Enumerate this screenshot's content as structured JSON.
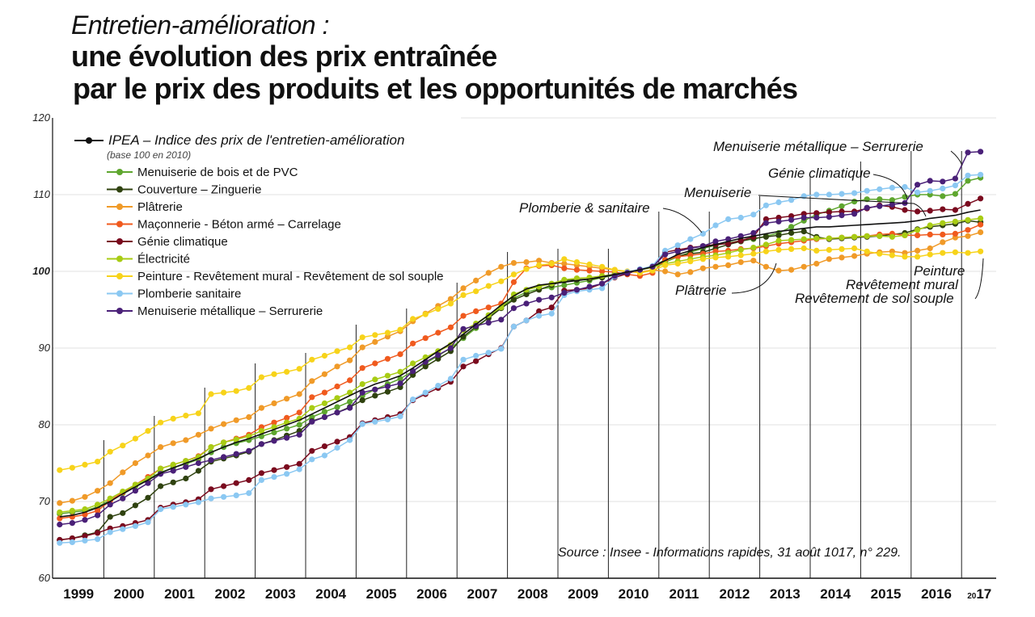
{
  "title": {
    "subtitle": "Entretien-amélioration :",
    "line1": "une évolution des prix entraînée",
    "line2": "par le prix des produits et les opportunités de marchés"
  },
  "legend_title": "IPEA – Indice des prix de l'entretien-amélioration",
  "legend_subtitle": "(base 100 en 2010)",
  "source": "Source : Insee - Informations rapides, 31 août 1017, n° 229.",
  "annotations": {
    "menuiserie_metallique": "Menuiserie métallique – Serrurerie",
    "genie_climatique": "Génie climatique",
    "menuiserie": "Menuiserie",
    "plomberie": "Plomberie & sanitaire",
    "platrerie": "Plâtrerie",
    "peinture": "Peinture",
    "revetement_mural": "Revêtement mural",
    "revetement_sol": "Revêtement de sol souple"
  },
  "chart_data": {
    "type": "line",
    "title": "Entretien-amélioration : une évolution des prix entraînée par le prix des produits et les opportunités de marchés",
    "ylim": [
      60,
      120
    ],
    "yticks": [
      60,
      70,
      80,
      90,
      100,
      110,
      120
    ],
    "x_labels": [
      "1999",
      "2000",
      "2001",
      "2002",
      "2003",
      "2004",
      "2005",
      "2006",
      "2007",
      "2008",
      "2009",
      "2010",
      "2011",
      "2012",
      "2013",
      "2014",
      "2015",
      "2016",
      "2017"
    ],
    "x_label_last_prefix": "20",
    "x_label_last_suffix": "17",
    "x_label_last_year": "2017",
    "x": [
      "1999Q1",
      "1999Q2",
      "1999Q3",
      "1999Q4",
      "2000Q1",
      "2000Q2",
      "2000Q3",
      "2000Q4",
      "2001Q1",
      "2001Q2",
      "2001Q3",
      "2001Q4",
      "2002Q1",
      "2002Q2",
      "2002Q3",
      "2002Q4",
      "2003Q1",
      "2003Q2",
      "2003Q3",
      "2003Q4",
      "2004Q1",
      "2004Q2",
      "2004Q3",
      "2004Q4",
      "2005Q1",
      "2005Q2",
      "2005Q3",
      "2005Q4",
      "2006Q1",
      "2006Q2",
      "2006Q3",
      "2006Q4",
      "2007Q1",
      "2007Q2",
      "2007Q3",
      "2007Q4",
      "2008Q1",
      "2008Q2",
      "2008Q3",
      "2008Q4",
      "2009Q1",
      "2009Q2",
      "2009Q3",
      "2009Q4",
      "2010Q1",
      "2010Q2",
      "2010Q3",
      "2010Q4",
      "2011Q1",
      "2011Q2",
      "2011Q3",
      "2011Q4",
      "2012Q1",
      "2012Q2",
      "2012Q3",
      "2012Q4",
      "2013Q1",
      "2013Q2",
      "2013Q3",
      "2013Q4",
      "2014Q1",
      "2014Q2",
      "2014Q3",
      "2014Q4",
      "2015Q1",
      "2015Q2",
      "2015Q3",
      "2015Q4",
      "2016Q1",
      "2016Q2",
      "2016Q3",
      "2016Q4",
      "2017Q1",
      "2017Q2"
    ],
    "series": [
      {
        "name": "IPEA – Indice des prix de l'entretien-amélioration",
        "color": "#111111",
        "marker_every": 999,
        "values": [
          68.0,
          68.2,
          68.6,
          69.2,
          70.0,
          71.0,
          71.9,
          72.8,
          73.7,
          74.4,
          75.0,
          75.6,
          76.4,
          77.1,
          77.7,
          78.2,
          78.8,
          79.4,
          80.0,
          80.6,
          81.4,
          82.2,
          83.0,
          83.8,
          84.6,
          85.3,
          85.8,
          86.4,
          87.4,
          88.5,
          89.6,
          90.6,
          91.8,
          93.1,
          94.3,
          95.6,
          96.8,
          97.7,
          98.2,
          98.4,
          98.6,
          98.8,
          99.0,
          99.3,
          99.6,
          99.9,
          100.2,
          100.6,
          101.4,
          102.2,
          102.7,
          103.1,
          103.5,
          103.9,
          104.3,
          104.6,
          104.9,
          105.2,
          105.4,
          105.6,
          105.8,
          105.8,
          105.9,
          106.0,
          106.1,
          106.2,
          106.3,
          106.4,
          106.6,
          106.9,
          107.1,
          107.3,
          107.7,
          108.0
        ]
      },
      {
        "name": "Menuiserie de bois et de PVC",
        "color": "#5ea62e",
        "values": [
          68.4,
          68.6,
          68.8,
          69.3,
          70.2,
          71.1,
          72.0,
          72.9,
          73.8,
          74.4,
          74.9,
          75.5,
          76.4,
          77.1,
          77.6,
          78.0,
          78.5,
          79.0,
          79.5,
          80.0,
          81.0,
          81.7,
          82.3,
          83.0,
          83.8,
          84.6,
          85.3,
          86.0,
          87.0,
          88.0,
          89.0,
          90.0,
          91.3,
          92.6,
          94.0,
          95.3,
          96.5,
          97.3,
          97.7,
          97.9,
          98.2,
          98.5,
          98.8,
          99.2,
          99.5,
          99.8,
          100.2,
          100.6,
          101.2,
          101.9,
          102.5,
          103.0,
          103.4,
          103.7,
          104.0,
          104.2,
          104.6,
          105.0,
          105.8,
          106.6,
          107.4,
          107.9,
          108.5,
          109.1,
          109.4,
          109.4,
          109.3,
          109.7,
          110.0,
          110.0,
          109.8,
          110.1,
          111.8,
          112.2
        ]
      },
      {
        "name": "Couverture – Zinguerie",
        "color": "#2f420f",
        "values": [
          65.0,
          65.2,
          65.6,
          66.0,
          68.0,
          68.5,
          69.5,
          70.5,
          72.0,
          72.5,
          73.0,
          74.0,
          75.2,
          75.6,
          76.0,
          76.5,
          77.5,
          78.0,
          78.6,
          79.2,
          80.5,
          81.0,
          81.6,
          82.3,
          83.2,
          83.8,
          84.3,
          84.9,
          86.5,
          87.6,
          88.6,
          89.6,
          91.5,
          92.8,
          93.9,
          95.2,
          96.3,
          97.0,
          97.6,
          98.2,
          98.8,
          98.9,
          99.0,
          99.2,
          99.6,
          99.9,
          100.2,
          100.6,
          101.5,
          102.0,
          102.3,
          102.5,
          103.0,
          103.5,
          103.9,
          104.3,
          104.5,
          104.7,
          105.0,
          105.2,
          104.5,
          104.2,
          104.3,
          104.4,
          104.5,
          104.6,
          104.8,
          105.0,
          105.5,
          105.8,
          106.0,
          106.2,
          106.6,
          106.4
        ]
      },
      {
        "name": "Plâtrerie",
        "color": "#f09a28",
        "values": [
          69.8,
          70.1,
          70.6,
          71.4,
          72.4,
          73.8,
          75.0,
          76.0,
          77.1,
          77.6,
          78.0,
          78.7,
          79.5,
          80.1,
          80.6,
          81.0,
          82.2,
          82.8,
          83.4,
          84.0,
          85.7,
          86.6,
          87.6,
          88.4,
          90.1,
          90.8,
          91.5,
          92.2,
          93.5,
          94.5,
          95.5,
          96.4,
          97.8,
          98.8,
          99.8,
          100.6,
          101.1,
          101.2,
          101.4,
          101.1,
          101.0,
          100.8,
          100.6,
          100.4,
          100.2,
          99.9,
          99.9,
          100.2,
          100.0,
          99.6,
          99.9,
          100.4,
          100.6,
          100.8,
          101.2,
          101.4,
          100.6,
          100.1,
          100.2,
          100.6,
          101.0,
          101.6,
          101.8,
          102.0,
          102.3,
          102.5,
          102.6,
          102.4,
          102.7,
          103.0,
          103.8,
          104.4,
          104.6,
          105.1
        ]
      },
      {
        "name": "Maçonnerie - Béton armé – Carrelage",
        "color": "#f05a1e",
        "values": [
          67.8,
          68.0,
          68.3,
          68.8,
          70.1,
          71.2,
          72.2,
          73.2,
          74.3,
          74.8,
          75.3,
          75.9,
          77.1,
          77.7,
          78.2,
          78.7,
          79.7,
          80.3,
          80.9,
          81.6,
          83.6,
          84.2,
          85.0,
          85.8,
          87.4,
          88.0,
          88.6,
          89.2,
          90.6,
          91.3,
          92.0,
          92.7,
          94.2,
          94.8,
          95.3,
          95.8,
          98.6,
          100.4,
          100.7,
          100.8,
          100.4,
          100.2,
          100.1,
          100.0,
          99.9,
          99.6,
          99.4,
          99.8,
          101.5,
          101.9,
          102.1,
          102.3,
          102.6,
          102.7,
          102.9,
          103.0,
          103.3,
          103.6,
          103.8,
          104.0,
          104.2,
          104.3,
          104.4,
          104.5,
          104.6,
          104.8,
          104.9,
          104.7,
          104.7,
          104.8,
          104.8,
          104.9,
          105.4,
          106.1
        ]
      },
      {
        "name": "Génie climatique",
        "color": "#7a0a1e",
        "values": [
          65.0,
          65.2,
          65.5,
          65.9,
          66.5,
          66.8,
          67.2,
          67.6,
          69.2,
          69.6,
          69.9,
          70.3,
          71.6,
          72.0,
          72.4,
          72.8,
          73.7,
          74.1,
          74.5,
          74.9,
          76.6,
          77.2,
          77.8,
          78.4,
          80.2,
          80.6,
          81.0,
          81.4,
          83.2,
          84.0,
          84.8,
          85.6,
          87.6,
          88.3,
          89.2,
          90.0,
          92.8,
          93.6,
          94.8,
          95.3,
          97.5,
          97.6,
          97.8,
          98.4,
          99.2,
          99.7,
          100.2,
          100.6,
          102.5,
          102.8,
          103.1,
          103.3,
          103.5,
          103.6,
          104.0,
          104.5,
          106.8,
          107.0,
          107.2,
          107.5,
          107.6,
          107.7,
          107.8,
          107.8,
          108.2,
          108.6,
          108.4,
          108.0,
          107.8,
          107.9,
          108.1,
          108.0,
          108.8,
          109.5
        ]
      },
      {
        "name": "Électricité",
        "color": "#a8cc14",
        "values": [
          68.6,
          68.8,
          69.0,
          69.6,
          70.4,
          71.3,
          72.2,
          73.0,
          74.3,
          74.8,
          75.3,
          75.8,
          77.1,
          77.7,
          78.1,
          78.5,
          79.2,
          79.7,
          80.3,
          80.8,
          82.2,
          82.8,
          83.5,
          84.2,
          85.3,
          85.9,
          86.4,
          86.9,
          88.0,
          88.8,
          89.6,
          90.4,
          92.3,
          93.2,
          94.3,
          95.3,
          97.0,
          97.6,
          98.0,
          98.4,
          98.9,
          99.1,
          99.2,
          99.4,
          99.6,
          99.9,
          100.2,
          100.5,
          101.0,
          101.3,
          101.6,
          101.9,
          102.1,
          102.4,
          102.8,
          103.1,
          103.5,
          104.0,
          104.1,
          104.2,
          104.3,
          104.3,
          104.4,
          104.5,
          104.6,
          104.6,
          104.5,
          104.7,
          105.4,
          106.0,
          106.3,
          106.5,
          106.7,
          106.9
        ]
      },
      {
        "name": "Peinture - Revêtement mural - Revêtement de sol souple",
        "color": "#f7d31a",
        "values": [
          74.1,
          74.4,
          74.8,
          75.2,
          76.5,
          77.3,
          78.2,
          79.2,
          80.3,
          80.8,
          81.2,
          81.5,
          84.0,
          84.2,
          84.4,
          84.8,
          86.2,
          86.6,
          86.9,
          87.3,
          88.5,
          89.0,
          89.6,
          90.1,
          91.4,
          91.7,
          92.0,
          92.4,
          93.8,
          94.4,
          95.1,
          95.8,
          96.9,
          97.4,
          98.1,
          98.7,
          99.6,
          100.3,
          100.8,
          101.0,
          101.6,
          101.2,
          100.9,
          100.6,
          100.2,
          100.0,
          99.8,
          100.1,
          100.8,
          101.0,
          101.3,
          101.6,
          101.8,
          101.9,
          102.1,
          102.3,
          102.6,
          102.8,
          102.9,
          103.0,
          102.7,
          102.8,
          102.9,
          103.0,
          102.6,
          102.3,
          102.1,
          101.9,
          101.9,
          102.2,
          102.4,
          102.5,
          102.4,
          102.6
        ]
      },
      {
        "name": "Plomberie sanitaire",
        "color": "#8bc8f2",
        "values": [
          64.6,
          64.7,
          64.9,
          65.1,
          66.0,
          66.4,
          66.8,
          67.3,
          69.0,
          69.3,
          69.6,
          69.9,
          70.4,
          70.6,
          70.8,
          71.1,
          72.8,
          73.2,
          73.6,
          74.2,
          75.5,
          76.0,
          77.0,
          78.0,
          80.1,
          80.4,
          80.7,
          81.1,
          83.3,
          84.2,
          85.1,
          86.0,
          88.5,
          89.0,
          89.4,
          89.9,
          92.8,
          93.6,
          94.2,
          94.5,
          96.9,
          97.4,
          97.6,
          97.8,
          99.3,
          99.9,
          100.3,
          100.7,
          102.7,
          103.4,
          104.2,
          104.9,
          106.0,
          106.8,
          107.0,
          107.4,
          108.6,
          109.0,
          109.3,
          109.8,
          110.0,
          110.0,
          110.1,
          110.2,
          110.5,
          110.7,
          110.9,
          111.0,
          110.3,
          110.5,
          110.8,
          111.2,
          112.5,
          112.6
        ]
      },
      {
        "name": "Menuiserie métallique – Serrurerie",
        "color": "#4a2078",
        "values": [
          67.0,
          67.2,
          67.6,
          68.2,
          69.6,
          70.4,
          71.4,
          72.4,
          73.6,
          74.0,
          74.5,
          75.0,
          75.4,
          75.8,
          76.2,
          76.6,
          77.5,
          77.9,
          78.3,
          78.7,
          80.4,
          81.0,
          81.6,
          82.2,
          84.2,
          84.6,
          85.0,
          85.4,
          87.0,
          88.2,
          89.1,
          90.0,
          92.5,
          92.9,
          93.3,
          93.7,
          95.2,
          95.8,
          96.3,
          96.6,
          97.2,
          97.6,
          98.0,
          98.4,
          99.4,
          99.8,
          100.2,
          100.6,
          102.2,
          102.6,
          103.0,
          103.3,
          103.9,
          104.2,
          104.6,
          105.0,
          106.3,
          106.5,
          106.7,
          107.0,
          107.0,
          107.1,
          107.3,
          107.5,
          108.3,
          108.5,
          108.7,
          108.9,
          111.3,
          111.8,
          111.7,
          112.1,
          115.5,
          115.6
        ]
      }
    ]
  }
}
